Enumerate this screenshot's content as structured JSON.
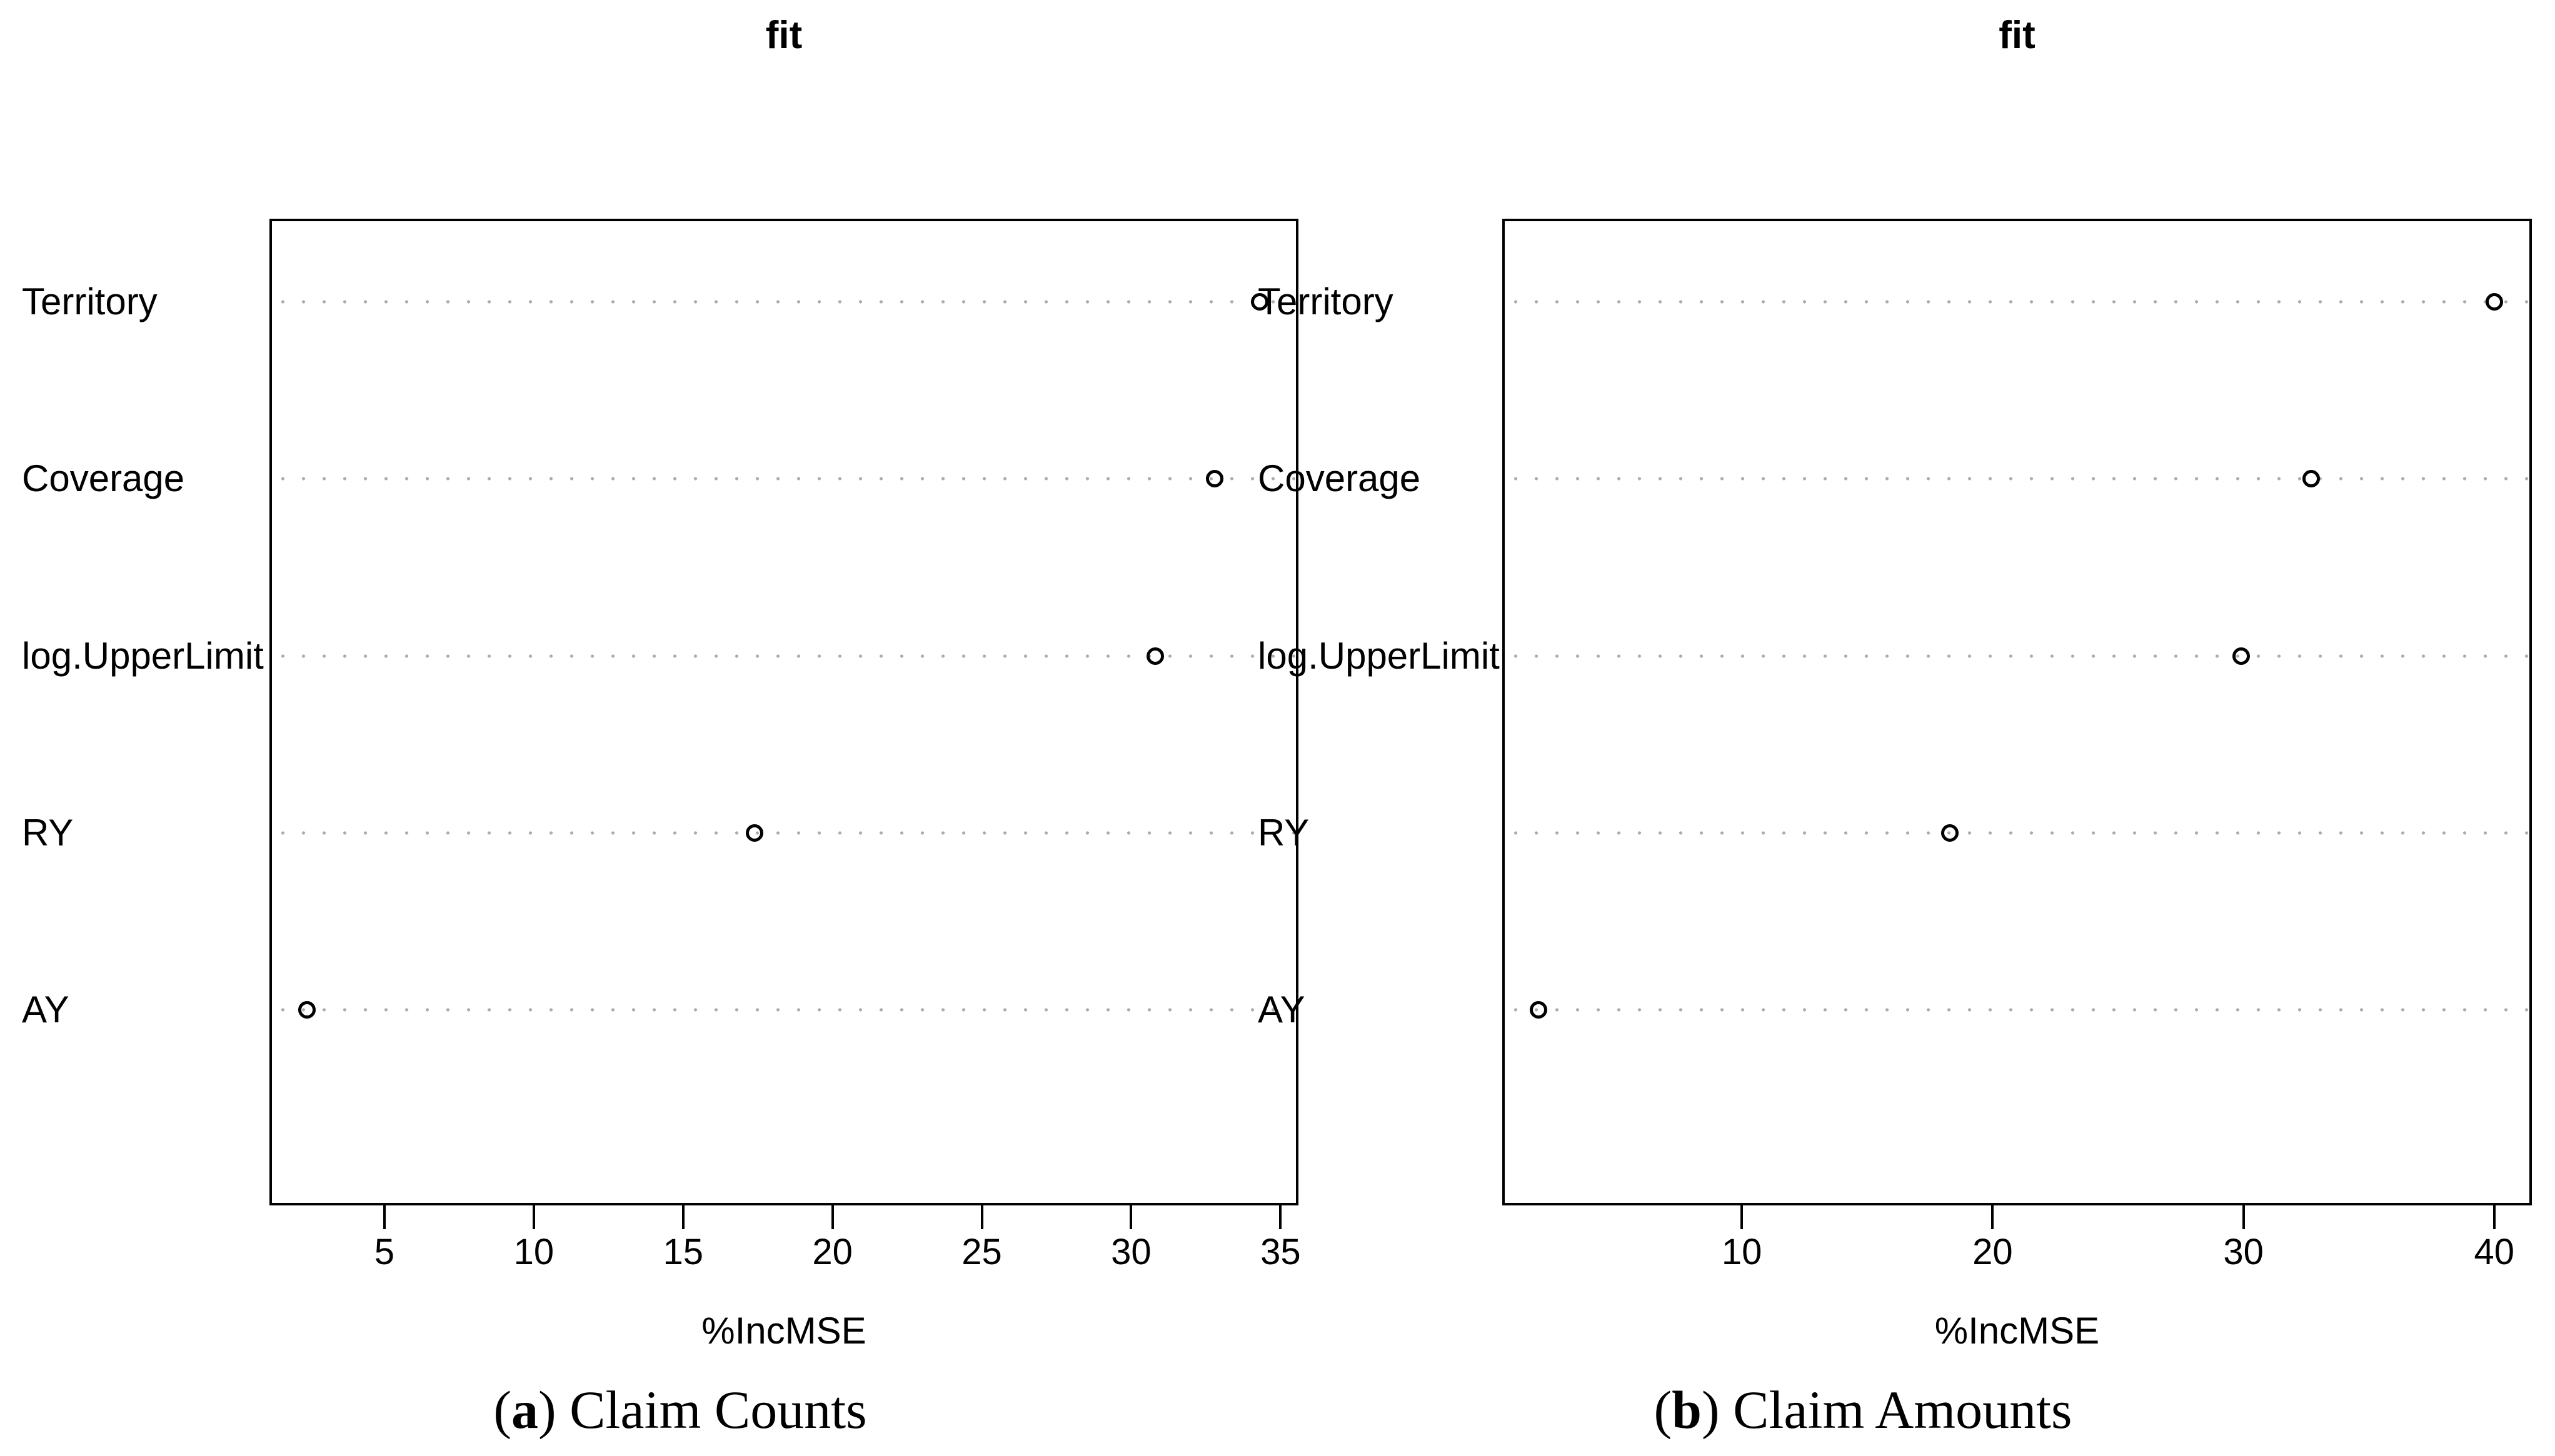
{
  "figure": {
    "background": "#ffffff",
    "colors": {
      "point_stroke": "#000000",
      "grid_dots": "#ababab",
      "box_border": "#000000",
      "text": "#000000"
    }
  },
  "chart_data": [
    {
      "type": "scatter",
      "variant": "dotchart",
      "title": "fit",
      "xlabel": "%IncMSE",
      "caption": "(a) Claim Counts",
      "caption_parts": {
        "pre": "(",
        "bold": "a",
        "post": ") Claim Counts"
      },
      "categories": [
        "Territory",
        "Coverage",
        "log.UpperLimit",
        "RY",
        "AY"
      ],
      "values": [
        34.3,
        32.8,
        30.8,
        17.4,
        2.4
      ],
      "xlim": [
        1.15,
        35.6
      ],
      "xticks": [
        5,
        10,
        15,
        20,
        25,
        30,
        35
      ],
      "grid": "horizontal-dotted",
      "legend": "none",
      "point_style": "open-circle"
    },
    {
      "type": "scatter",
      "variant": "dotchart",
      "title": "fit",
      "xlabel": "%IncMSE",
      "caption": "(b) Claim Amounts",
      "caption_parts": {
        "pre": "(",
        "bold": "b",
        "post": ") Claim Amounts"
      },
      "categories": [
        "Territory",
        "Coverage",
        "log.UpperLimit",
        "RY",
        "AY"
      ],
      "values": [
        40.0,
        32.7,
        29.9,
        18.3,
        1.9
      ],
      "xlim": [
        0.45,
        41.5
      ],
      "xticks": [
        10,
        20,
        30,
        40
      ],
      "grid": "horizontal-dotted",
      "legend": "none",
      "point_style": "open-circle"
    }
  ]
}
